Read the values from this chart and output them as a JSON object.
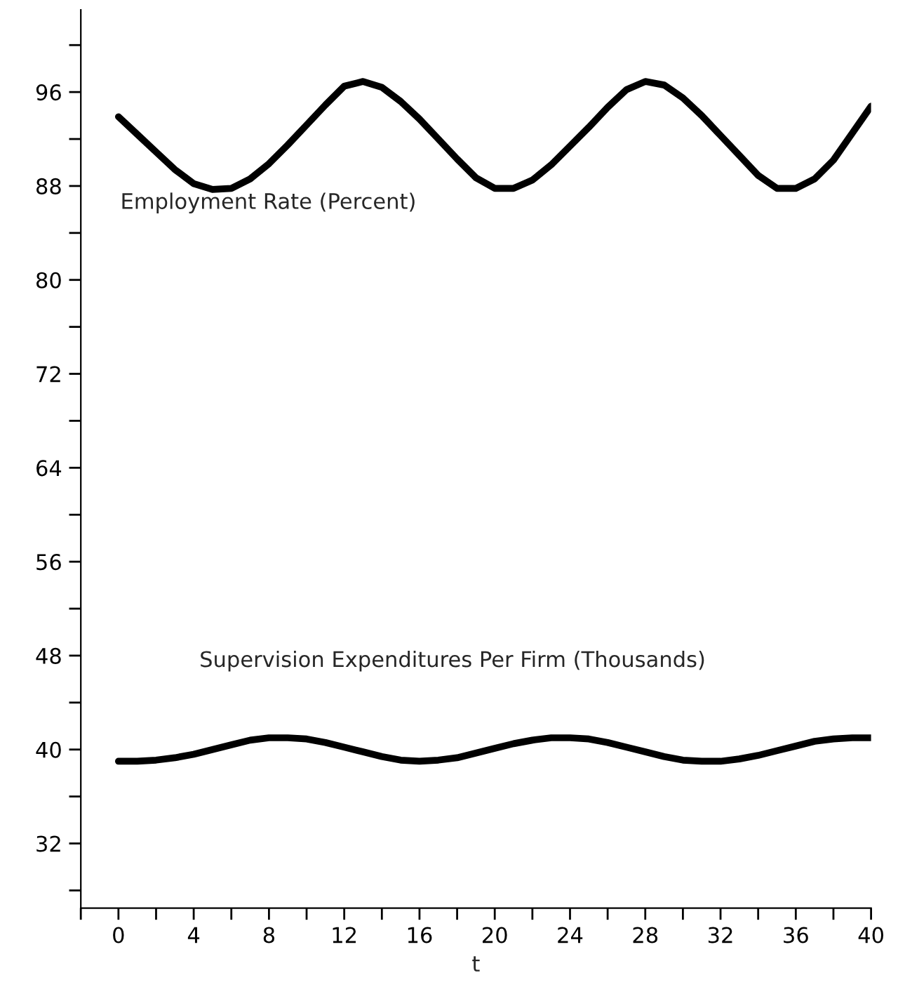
{
  "chart_data": {
    "type": "line",
    "xlabel": "t",
    "x": [
      0,
      1,
      2,
      3,
      4,
      5,
      6,
      7,
      8,
      9,
      10,
      11,
      12,
      13,
      14,
      15,
      16,
      17,
      18,
      19,
      20,
      21,
      22,
      23,
      24,
      25,
      26,
      27,
      28,
      29,
      30,
      31,
      32,
      33,
      34,
      35,
      36,
      37,
      38,
      39,
      40
    ],
    "series": [
      {
        "color": "#000000",
        "values": [
          93.9,
          92.4,
          90.9,
          89.4,
          88.2,
          87.7,
          87.8,
          88.6,
          89.9,
          91.5,
          93.2,
          94.9,
          96.5,
          96.9,
          96.4,
          95.2,
          93.7,
          92.0,
          90.3,
          88.7,
          87.8,
          87.8,
          88.5,
          89.8,
          91.4,
          93.0,
          94.7,
          96.2,
          96.9,
          96.6,
          95.5,
          94.0,
          92.3,
          90.6,
          88.9,
          87.8,
          87.8,
          88.6,
          90.2,
          92.5,
          94.8
        ]
      },
      {
        "color": "#000000",
        "values": [
          39.0,
          39.0,
          39.1,
          39.3,
          39.6,
          40.0,
          40.4,
          40.8,
          41.0,
          41.0,
          40.9,
          40.6,
          40.2,
          39.8,
          39.4,
          39.1,
          39.0,
          39.1,
          39.3,
          39.7,
          40.1,
          40.5,
          40.8,
          41.0,
          41.0,
          40.9,
          40.6,
          40.2,
          39.8,
          39.4,
          39.1,
          39.0,
          39.0,
          39.2,
          39.5,
          39.9,
          40.3,
          40.7,
          40.9,
          41.0,
          41.0
        ]
      }
    ],
    "annotations": [
      "Employment Rate (Percent)",
      "Supervision Expenditures Per Firm (Thousands)"
    ],
    "xlim": [
      -2,
      40
    ],
    "ylim": [
      26.5,
      103
    ],
    "xticks": [
      {
        "value": -2,
        "label": null
      },
      0,
      {
        "value": 2,
        "label": null
      },
      4,
      {
        "value": 6,
        "label": null
      },
      8,
      {
        "value": 10,
        "label": null
      },
      12,
      {
        "value": 14,
        "label": null
      },
      16,
      {
        "value": 18,
        "label": null
      },
      20,
      {
        "value": 22,
        "label": null
      },
      24,
      {
        "value": 26,
        "label": null
      },
      28,
      {
        "value": 30,
        "label": null
      },
      32,
      {
        "value": 34,
        "label": null
      },
      36,
      {
        "value": 38,
        "label": null
      },
      40
    ],
    "yticks": [
      {
        "value": 28,
        "label": null
      },
      32,
      {
        "value": 36,
        "label": null
      },
      40,
      {
        "value": 44,
        "label": null
      },
      48,
      {
        "value": 52,
        "label": null
      },
      56,
      {
        "value": 60,
        "label": null
      },
      64,
      {
        "value": 68,
        "label": null
      },
      72,
      {
        "value": 76,
        "label": null
      },
      80,
      {
        "value": 84,
        "label": null
      },
      88,
      {
        "value": 92,
        "label": null
      },
      96,
      {
        "value": 100,
        "label": null
      }
    ],
    "grid": false,
    "legend": false,
    "marker": "none",
    "line_style": "solid"
  }
}
